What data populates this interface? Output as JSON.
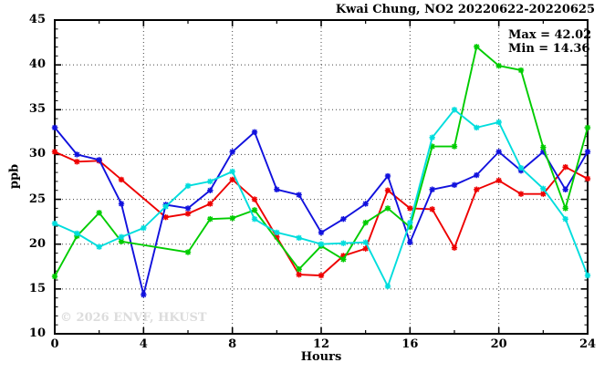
{
  "title": "Kwai Chung, NO2 20220622-20220625",
  "annotations": {
    "max_label": "Max = 42.02",
    "min_label": "Min = 14.36"
  },
  "watermark": "© 2026 ENVF, HKUST",
  "chart_data": {
    "type": "line",
    "title": "Kwai Chung, NO2 20220622-20220625",
    "xlabel": "Hours",
    "ylabel": "ppb",
    "xlim": [
      0,
      24
    ],
    "ylim": [
      10,
      45
    ],
    "x_major_ticks": [
      0,
      4,
      8,
      12,
      16,
      20,
      24
    ],
    "x_minor_step": 2,
    "y_major_ticks": [
      10,
      15,
      20,
      25,
      30,
      35,
      40,
      45
    ],
    "y_minor_step": 1,
    "grid": "dotted-at-major-ticks",
    "legend_position": "none",
    "marker": "asterisk",
    "stat_max": 42.02,
    "stat_min": 14.36,
    "x": [
      0,
      1,
      2,
      3,
      4,
      5,
      6,
      7,
      8,
      9,
      10,
      11,
      12,
      13,
      14,
      15,
      16,
      17,
      18,
      19,
      20,
      21,
      22,
      23,
      24
    ],
    "series": [
      {
        "name": "series-red",
        "color": "#ee0000",
        "values": [
          30.3,
          29.2,
          29.3,
          27.2,
          null,
          23.0,
          23.4,
          24.5,
          27.2,
          25.0,
          20.8,
          16.6,
          16.5,
          18.7,
          19.5,
          26.0,
          24.0,
          23.9,
          19.6,
          26.1,
          27.1,
          25.6,
          25.6,
          28.6,
          27.3
        ]
      },
      {
        "name": "series-blue",
        "color": "#1111dd",
        "values": [
          33.0,
          30.0,
          29.4,
          24.5,
          14.36,
          24.4,
          24.0,
          26.0,
          30.3,
          32.5,
          26.1,
          25.5,
          21.3,
          22.8,
          24.5,
          27.6,
          20.2,
          26.1,
          26.6,
          27.7,
          30.3,
          28.2,
          30.3,
          26.1,
          30.3
        ]
      },
      {
        "name": "series-green",
        "color": "#00cc00",
        "values": [
          16.4,
          20.9,
          23.5,
          20.3,
          null,
          null,
          19.1,
          22.8,
          22.9,
          23.8,
          null,
          17.2,
          19.8,
          18.3,
          22.4,
          24.0,
          21.9,
          30.9,
          30.9,
          42.02,
          39.9,
          39.4,
          30.8,
          24.0,
          33.0
        ]
      },
      {
        "name": "series-cyan",
        "color": "#00dddd",
        "values": [
          22.3,
          21.2,
          19.7,
          20.8,
          21.8,
          24.2,
          26.5,
          27.0,
          28.1,
          22.8,
          21.3,
          20.7,
          20.0,
          20.1,
          20.2,
          15.3,
          22.4,
          31.9,
          35.0,
          33.0,
          33.6,
          28.5,
          26.2,
          22.8,
          16.5
        ]
      }
    ]
  }
}
